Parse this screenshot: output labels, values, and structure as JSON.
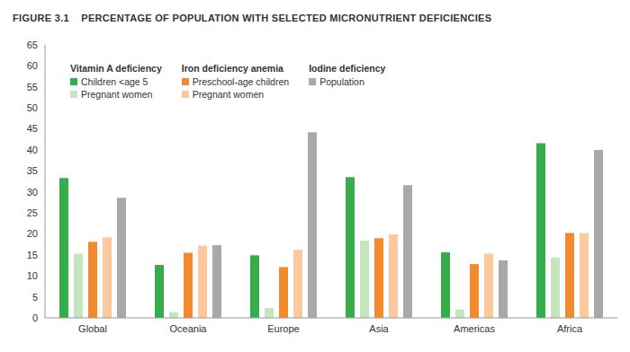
{
  "chart_data": {
    "type": "bar",
    "title": "FIGURE 3.1    PERCENTAGE OF POPULATION WITH SELECTED MICRONUTRIENT DEFICIENCIES",
    "categories": [
      "Global",
      "Oceania",
      "Europe",
      "Asia",
      "Americas",
      "Africa"
    ],
    "series": [
      {
        "group": "Vitamin A deficiency",
        "name": "Children <age 5",
        "color": "#36ad4a",
        "values": [
          33.3,
          12.6,
          14.9,
          33.5,
          15.6,
          41.6
        ]
      },
      {
        "group": "Vitamin A deficiency",
        "name": "Pregnant women",
        "color": "#c4e5bd",
        "values": [
          15.3,
          1.4,
          2.3,
          18.4,
          2.0,
          14.4
        ]
      },
      {
        "group": "Iron deficiency anemia",
        "name": "Preschool-age children",
        "color": "#f28a2e",
        "values": [
          18.1,
          15.5,
          12.1,
          19.0,
          12.8,
          20.2
        ]
      },
      {
        "group": "Iron deficiency anemia",
        "name": "Pregnant women",
        "color": "#fbc99d",
        "values": [
          19.2,
          17.2,
          16.2,
          19.9,
          15.3,
          20.2
        ]
      },
      {
        "group": "Iodine deficiency",
        "name": "Population",
        "color": "#a7a9ab",
        "values": [
          28.6,
          17.3,
          44.2,
          31.6,
          13.7,
          40.0
        ]
      }
    ],
    "ylim": [
      0,
      65
    ],
    "yticks": [
      0,
      5,
      10,
      15,
      20,
      25,
      30,
      35,
      40,
      45,
      50,
      55,
      60,
      65
    ],
    "grid": false,
    "legend": "top-left"
  }
}
